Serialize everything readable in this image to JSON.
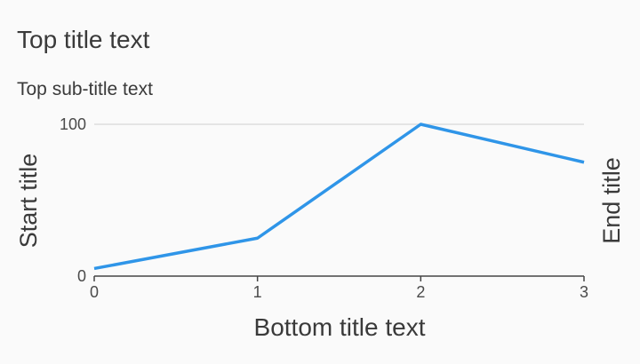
{
  "chart_data": {
    "type": "line",
    "title": "Top title text",
    "subtitle": "Top sub-title text",
    "xlabel": "Bottom title text",
    "ylabel": "Start title",
    "y2label": "End title",
    "x": [
      0,
      1,
      2,
      3
    ],
    "x_ticks": [
      "0",
      "1",
      "2",
      "3"
    ],
    "y_ticks": [
      "0",
      "100"
    ],
    "xlim": [
      0,
      3
    ],
    "ylim": [
      0,
      100
    ],
    "grid": true,
    "series": [
      {
        "values": [
          5,
          25,
          100,
          75
        ],
        "color": "#2f95e8"
      }
    ],
    "axis_color": "#444444",
    "grid_color": "#dddddd"
  }
}
